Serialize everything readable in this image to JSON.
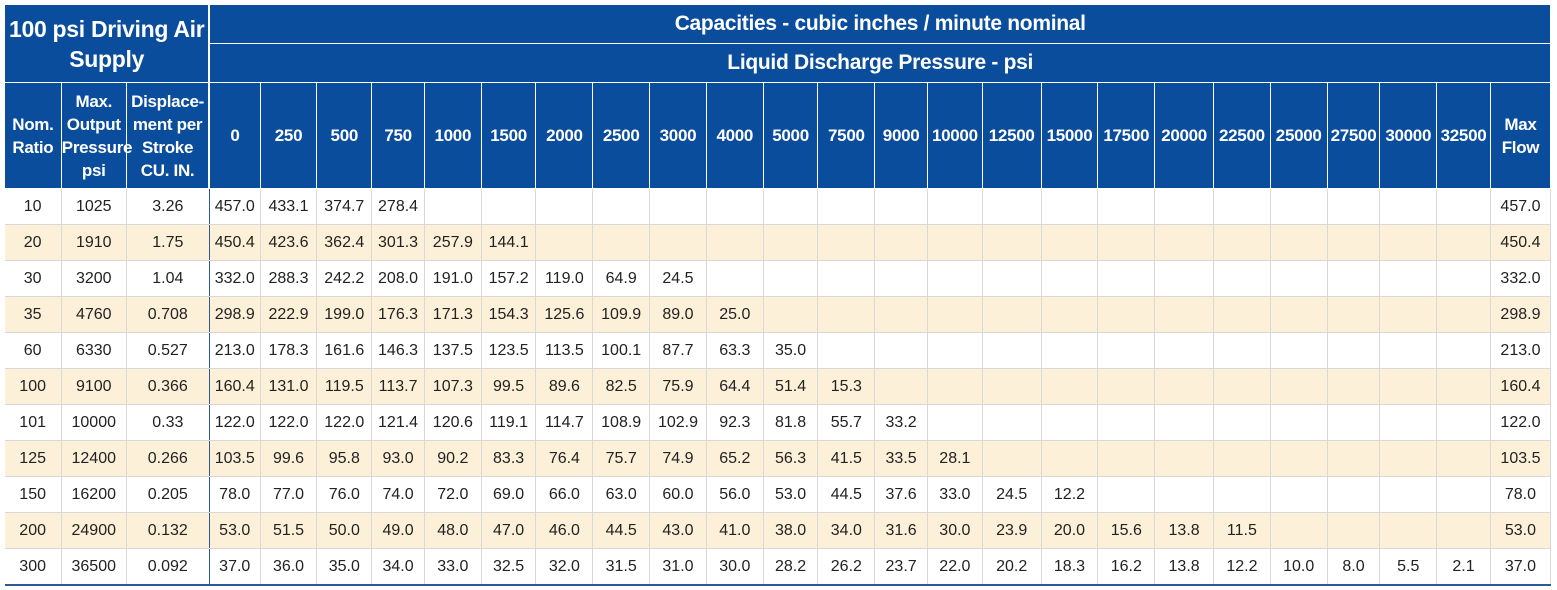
{
  "header": {
    "air_supply_title": "100 psi Driving Air Supply",
    "capacities_title": "Capacities - cubic inches / minute nominal",
    "pressure_title": "Liquid Discharge Pressure - psi",
    "col_nom_ratio": "Nom. Ratio",
    "col_max_output": "Max. Output Pressure psi",
    "col_displacement": "Displace- ment per Stroke CU. IN.",
    "col_max_flow": "Max Flow",
    "pressures": [
      "0",
      "250",
      "500",
      "750",
      "1000",
      "1500",
      "2000",
      "2500",
      "3000",
      "4000",
      "5000",
      "7500",
      "9000",
      "10000",
      "12500",
      "15000",
      "17500",
      "20000",
      "22500",
      "25000",
      "27500",
      "30000",
      "32500"
    ]
  },
  "rows": [
    {
      "ratio": "10",
      "max_output": "1025",
      "displacement": "3.26",
      "values": [
        "457.0",
        "433.1",
        "374.7",
        "278.4",
        "",
        "",
        "",
        "",
        "",
        "",
        "",
        "",
        "",
        "",
        "",
        "",
        "",
        "",
        "",
        "",
        "",
        "",
        ""
      ],
      "max_flow": "457.0"
    },
    {
      "ratio": "20",
      "max_output": "1910",
      "displacement": "1.75",
      "values": [
        "450.4",
        "423.6",
        "362.4",
        "301.3",
        "257.9",
        "144.1",
        "",
        "",
        "",
        "",
        "",
        "",
        "",
        "",
        "",
        "",
        "",
        "",
        "",
        "",
        "",
        "",
        ""
      ],
      "max_flow": "450.4"
    },
    {
      "ratio": "30",
      "max_output": "3200",
      "displacement": "1.04",
      "values": [
        "332.0",
        "288.3",
        "242.2",
        "208.0",
        "191.0",
        "157.2",
        "119.0",
        "64.9",
        "24.5",
        "",
        "",
        "",
        "",
        "",
        "",
        "",
        "",
        "",
        "",
        "",
        "",
        "",
        ""
      ],
      "max_flow": "332.0"
    },
    {
      "ratio": "35",
      "max_output": "4760",
      "displacement": "0.708",
      "values": [
        "298.9",
        "222.9",
        "199.0",
        "176.3",
        "171.3",
        "154.3",
        "125.6",
        "109.9",
        "89.0",
        "25.0",
        "",
        "",
        "",
        "",
        "",
        "",
        "",
        "",
        "",
        "",
        "",
        "",
        ""
      ],
      "max_flow": "298.9"
    },
    {
      "ratio": "60",
      "max_output": "6330",
      "displacement": "0.527",
      "values": [
        "213.0",
        "178.3",
        "161.6",
        "146.3",
        "137.5",
        "123.5",
        "113.5",
        "100.1",
        "87.7",
        "63.3",
        "35.0",
        "",
        "",
        "",
        "",
        "",
        "",
        "",
        "",
        "",
        "",
        "",
        ""
      ],
      "max_flow": "213.0"
    },
    {
      "ratio": "100",
      "max_output": "9100",
      "displacement": "0.366",
      "values": [
        "160.4",
        "131.0",
        "119.5",
        "113.7",
        "107.3",
        "99.5",
        "89.6",
        "82.5",
        "75.9",
        "64.4",
        "51.4",
        "15.3",
        "",
        "",
        "",
        "",
        "",
        "",
        "",
        "",
        "",
        "",
        ""
      ],
      "max_flow": "160.4"
    },
    {
      "ratio": "101",
      "max_output": "10000",
      "displacement": "0.33",
      "values": [
        "122.0",
        "122.0",
        "122.0",
        "121.4",
        "120.6",
        "119.1",
        "114.7",
        "108.9",
        "102.9",
        "92.3",
        "81.8",
        "55.7",
        "33.2",
        "",
        "",
        "",
        "",
        "",
        "",
        "",
        "",
        "",
        ""
      ],
      "max_flow": "122.0"
    },
    {
      "ratio": "125",
      "max_output": "12400",
      "displacement": "0.266",
      "values": [
        "103.5",
        "99.6",
        "95.8",
        "93.0",
        "90.2",
        "83.3",
        "76.4",
        "75.7",
        "74.9",
        "65.2",
        "56.3",
        "41.5",
        "33.5",
        "28.1",
        "",
        "",
        "",
        "",
        "",
        "",
        "",
        "",
        ""
      ],
      "max_flow": "103.5"
    },
    {
      "ratio": "150",
      "max_output": "16200",
      "displacement": "0.205",
      "values": [
        "78.0",
        "77.0",
        "76.0",
        "74.0",
        "72.0",
        "69.0",
        "66.0",
        "63.0",
        "60.0",
        "56.0",
        "53.0",
        "44.5",
        "37.6",
        "33.0",
        "24.5",
        "12.2",
        "",
        "",
        "",
        "",
        "",
        "",
        ""
      ],
      "max_flow": "78.0"
    },
    {
      "ratio": "200",
      "max_output": "24900",
      "displacement": "0.132",
      "values": [
        "53.0",
        "51.5",
        "50.0",
        "49.0",
        "48.0",
        "47.0",
        "46.0",
        "44.5",
        "43.0",
        "41.0",
        "38.0",
        "34.0",
        "31.6",
        "30.0",
        "23.9",
        "20.0",
        "15.6",
        "13.8",
        "11.5",
        "",
        "",
        "",
        ""
      ],
      "max_flow": "53.0"
    },
    {
      "ratio": "300",
      "max_output": "36500",
      "displacement": "0.092",
      "values": [
        "37.0",
        "36.0",
        "35.0",
        "34.0",
        "33.0",
        "32.5",
        "32.0",
        "31.5",
        "31.0",
        "30.0",
        "28.2",
        "26.2",
        "23.7",
        "22.0",
        "20.2",
        "18.3",
        "16.2",
        "13.8",
        "12.2",
        "10.0",
        "8.0",
        "5.5",
        "2.1"
      ],
      "max_flow": "37.0"
    }
  ],
  "colors": {
    "header_blue": "#0a4d9c",
    "row_alt": "#fdf0d8",
    "row_plain": "#ffffff"
  }
}
